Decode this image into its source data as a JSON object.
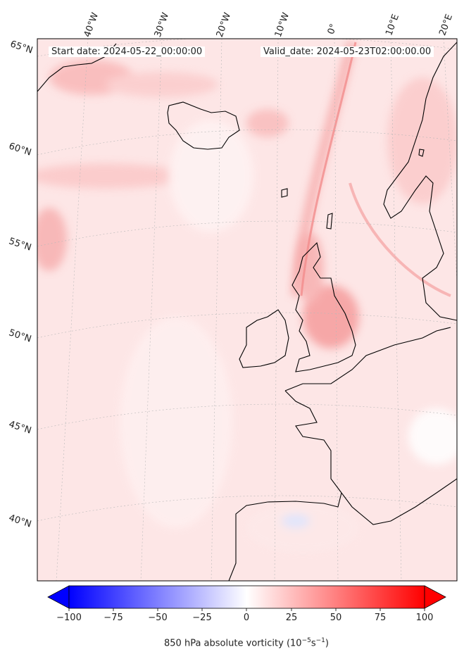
{
  "header": {
    "start_date": "Start date: 2024-05-22_00:00:00",
    "valid_date": "Valid_date: 2024-05-23T02:00:00.00"
  },
  "map": {
    "lon_labels": [
      "40°W",
      "30°W",
      "20°W",
      "10°W",
      "0°",
      "10°E",
      "20°E"
    ],
    "lat_labels": [
      "65°N",
      "60°N",
      "55°N",
      "50°N",
      "45°N",
      "40°N"
    ]
  },
  "colorbar": {
    "ticks": [
      "−100",
      "−75",
      "−50",
      "−25",
      "0",
      "25",
      "50",
      "75",
      "100"
    ],
    "title_main": "850 hPa absolute vorticity (10",
    "title_exp1": "−5",
    "title_mid": "s",
    "title_exp2": "−1",
    "title_end": ")",
    "min_color": "#0000ff",
    "mid_color": "#ffffff",
    "max_color": "#ff0000"
  }
}
